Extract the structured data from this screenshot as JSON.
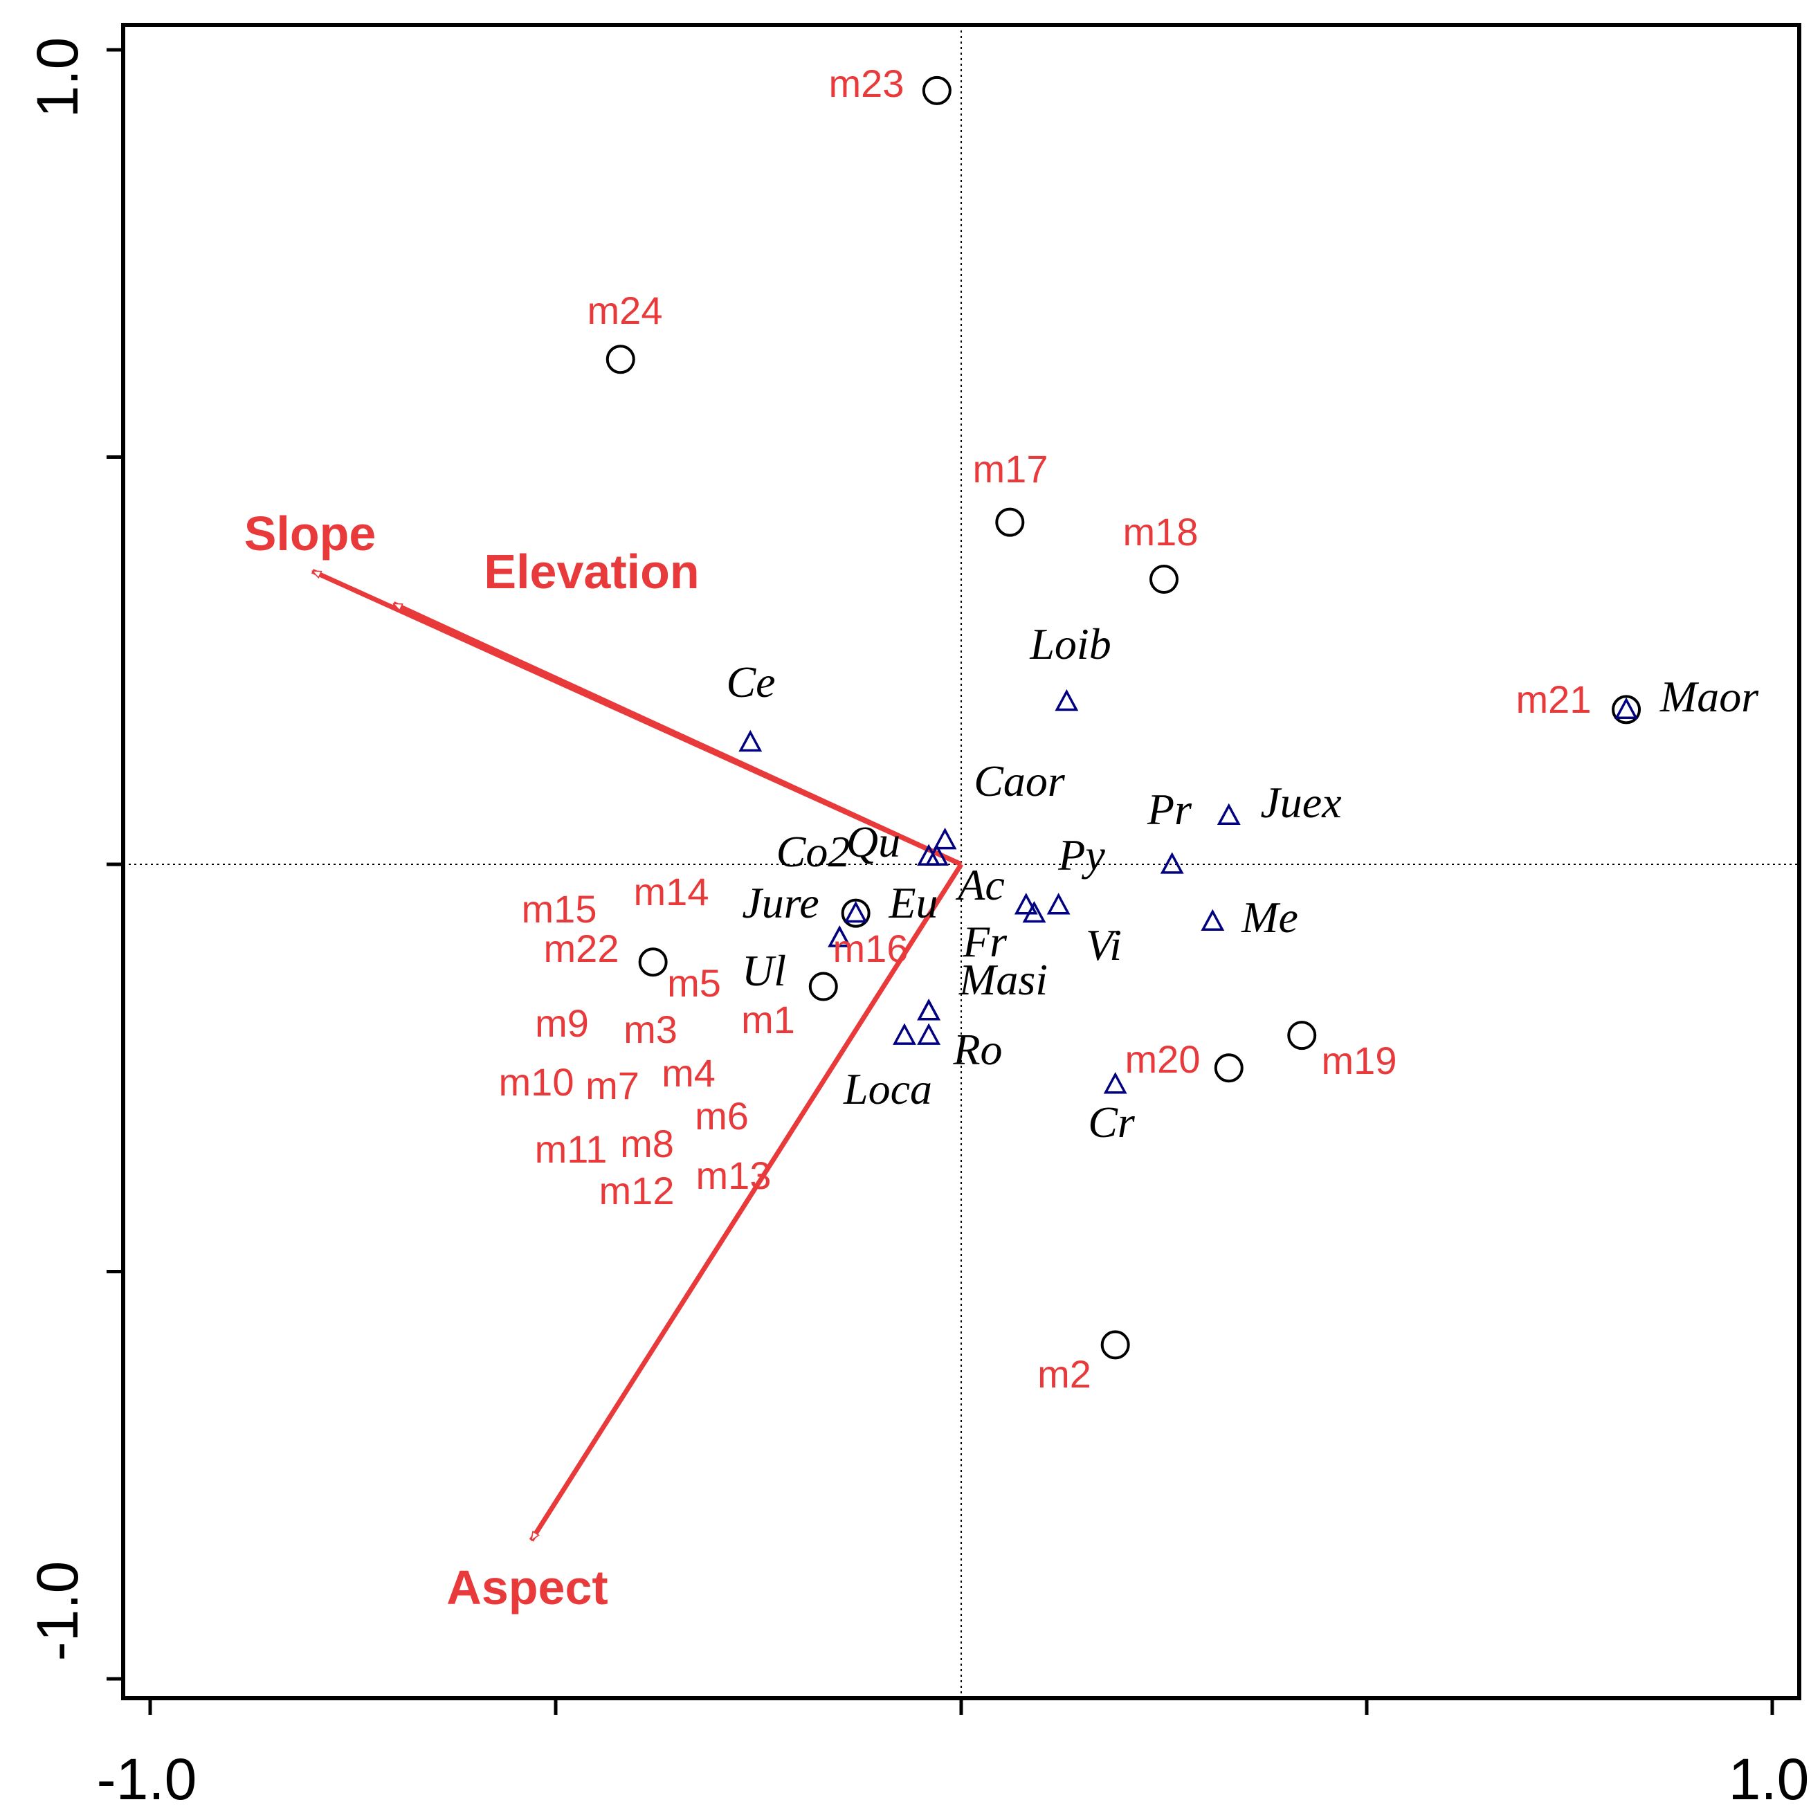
{
  "colors": {
    "accent": "#E8393B",
    "species": "#000080",
    "sites": "#000000",
    "axis": "#000000"
  },
  "chart_data": {
    "type": "scatter",
    "title": "",
    "xlabel": "",
    "ylabel": "",
    "xlim": [
      -1.0,
      1.0
    ],
    "ylim": [
      -1.0,
      1.0
    ],
    "x_tick_labels": [
      "-1.0",
      "1.0"
    ],
    "y_tick_labels": [
      "1.0",
      "-1.0"
    ],
    "x_ticks": [
      -1.0,
      -0.5,
      0.0,
      0.5,
      1.0
    ],
    "y_ticks": [
      -1.0,
      -0.5,
      0.0,
      0.5,
      1.0
    ],
    "reference_lines": {
      "x": 0.0,
      "y": 0.0
    },
    "grid": false,
    "legend": "none",
    "environmental_variables": [
      {
        "name": "Slope",
        "x": -0.8,
        "y": 0.36
      },
      {
        "name": "Elevation",
        "x": -0.7,
        "y": 0.32
      },
      {
        "name": "Aspect",
        "x": -0.53,
        "y": -0.83
      }
    ],
    "sites": [
      {
        "name": "m23",
        "x": -0.03,
        "y": 0.95
      },
      {
        "name": "m24",
        "x": -0.42,
        "y": 0.62
      },
      {
        "name": "m17",
        "x": 0.06,
        "y": 0.42
      },
      {
        "name": "m18",
        "x": 0.25,
        "y": 0.35
      },
      {
        "name": "m21",
        "x": 0.82,
        "y": 0.19
      },
      {
        "name": "m14",
        "x": -0.13,
        "y": -0.06
      },
      {
        "name": "m15",
        "x": -0.13,
        "y": -0.06
      },
      {
        "name": "m16",
        "x": -0.13,
        "y": -0.06
      },
      {
        "name": "m22",
        "x": -0.38,
        "y": -0.12
      },
      {
        "name": "m5",
        "x": -0.17,
        "y": -0.15
      },
      {
        "name": "m1",
        "x": -0.17,
        "y": -0.15
      },
      {
        "name": "m9",
        "x": -0.17,
        "y": -0.15
      },
      {
        "name": "m3",
        "x": -0.17,
        "y": -0.15
      },
      {
        "name": "m4",
        "x": -0.17,
        "y": -0.15
      },
      {
        "name": "m10",
        "x": -0.17,
        "y": -0.15
      },
      {
        "name": "m7",
        "x": -0.17,
        "y": -0.15
      },
      {
        "name": "m6",
        "x": -0.17,
        "y": -0.15
      },
      {
        "name": "m11",
        "x": -0.17,
        "y": -0.15
      },
      {
        "name": "m8",
        "x": -0.17,
        "y": -0.15
      },
      {
        "name": "m12",
        "x": -0.17,
        "y": -0.15
      },
      {
        "name": "m13",
        "x": -0.17,
        "y": -0.15
      },
      {
        "name": "m19",
        "x": 0.42,
        "y": -0.21
      },
      {
        "name": "m20",
        "x": 0.33,
        "y": -0.25
      },
      {
        "name": "m2",
        "x": 0.19,
        "y": -0.59
      }
    ],
    "species": [
      {
        "name": "Ce",
        "x": -0.26,
        "y": 0.15
      },
      {
        "name": "Loib",
        "x": 0.13,
        "y": 0.2
      },
      {
        "name": "Maor",
        "x": 0.82,
        "y": 0.19
      },
      {
        "name": "Caor",
        "x": -0.02,
        "y": 0.03
      },
      {
        "name": "Qu",
        "x": -0.04,
        "y": 0.01
      },
      {
        "name": "Co2",
        "x": -0.03,
        "y": 0.01
      },
      {
        "name": "Juex",
        "x": 0.33,
        "y": 0.06
      },
      {
        "name": "Pr",
        "x": 0.26,
        "y": 0.0
      },
      {
        "name": "Py",
        "x": 0.12,
        "y": -0.05
      },
      {
        "name": "Ac",
        "x": 0.08,
        "y": -0.05
      },
      {
        "name": "Vi",
        "x": 0.09,
        "y": -0.06
      },
      {
        "name": "Me",
        "x": 0.31,
        "y": -0.07
      },
      {
        "name": "Jure",
        "x": -0.13,
        "y": -0.06
      },
      {
        "name": "Eu",
        "x": -0.15,
        "y": -0.09
      },
      {
        "name": "Ul",
        "x": -0.15,
        "y": -0.09
      },
      {
        "name": "Fr",
        "x": -0.04,
        "y": -0.18
      },
      {
        "name": "Masi",
        "x": -0.04,
        "y": -0.18
      },
      {
        "name": "Ro",
        "x": -0.04,
        "y": -0.21
      },
      {
        "name": "Loca",
        "x": -0.07,
        "y": -0.21
      },
      {
        "name": "Cr",
        "x": 0.19,
        "y": -0.27
      }
    ]
  }
}
